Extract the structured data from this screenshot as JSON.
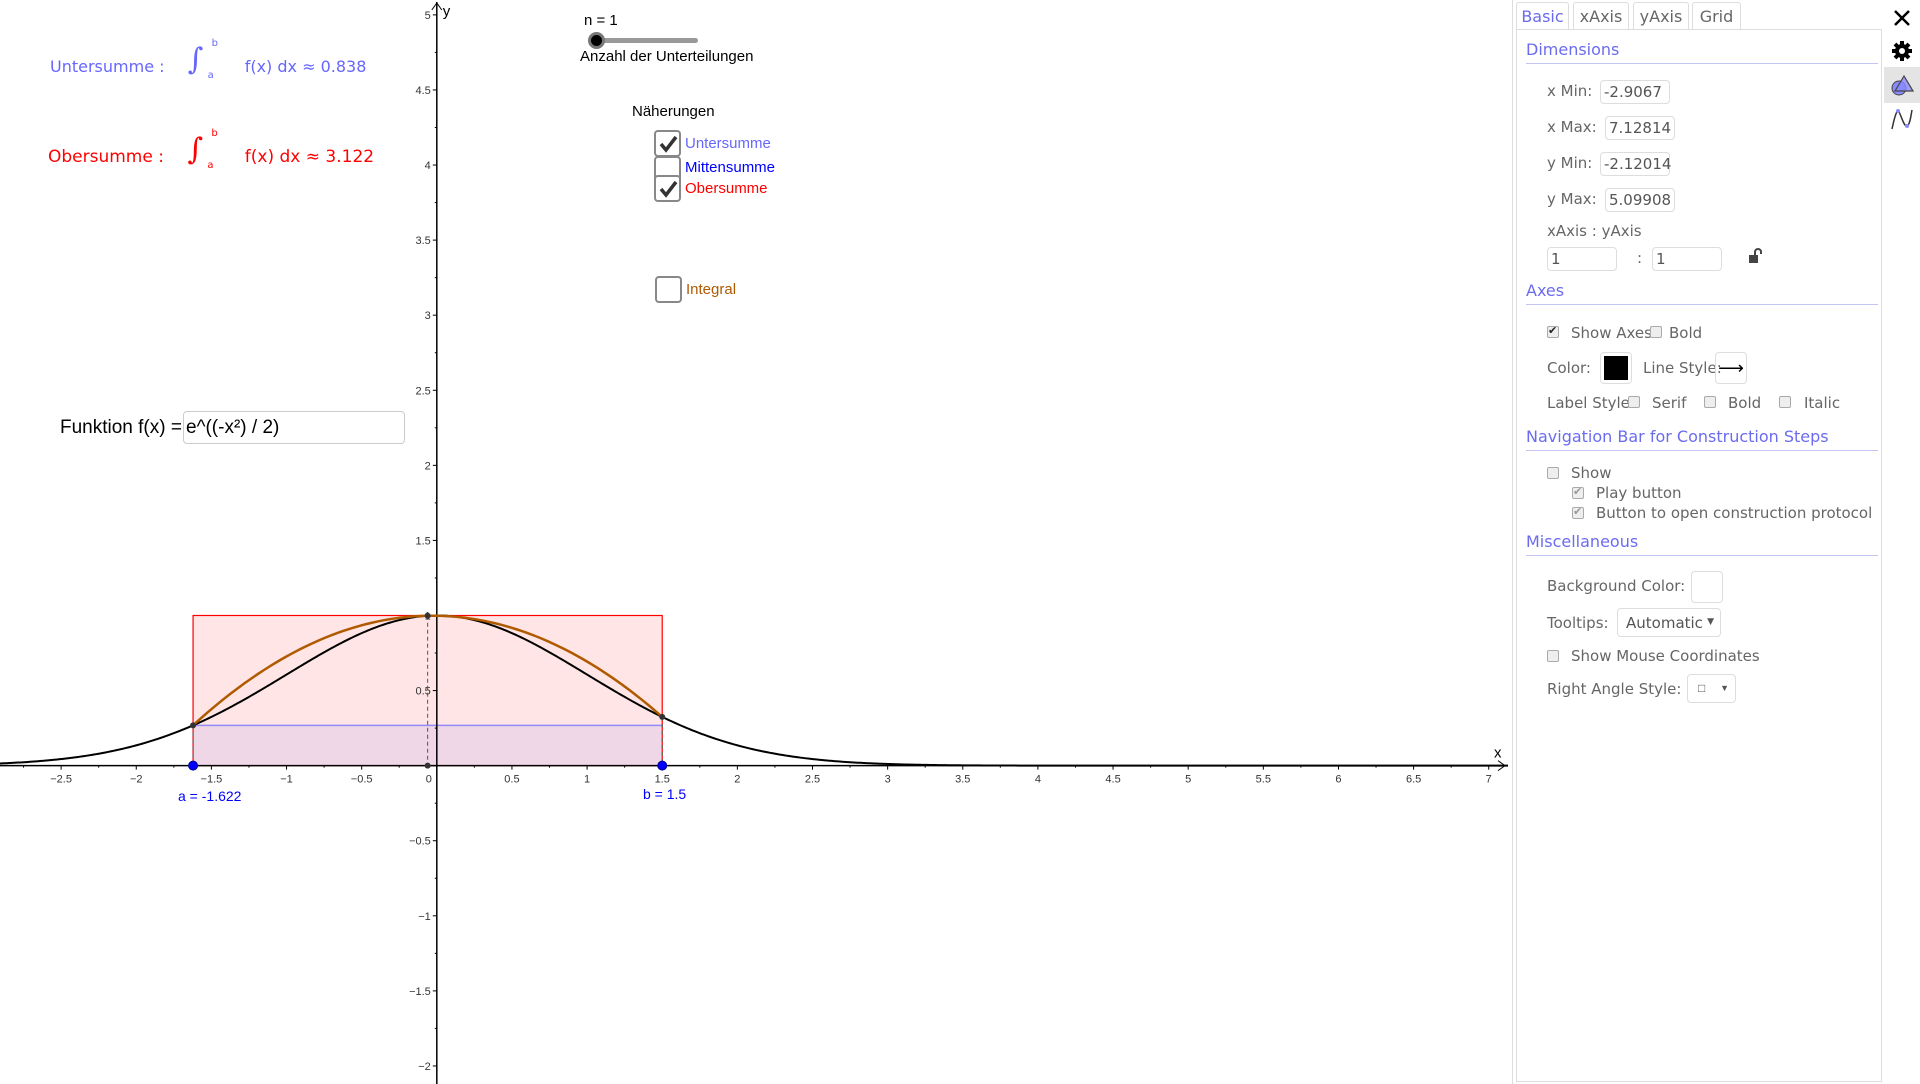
{
  "sums": {
    "unter_label": "Untersumme :",
    "unter_value": "≈ 0.838",
    "ober_label": "Obersumme :",
    "ober_value": "≈ 3.122",
    "integrand": "f(x) dx",
    "lower_limit": "a",
    "upper_limit": "b",
    "integral_sign": "∫"
  },
  "slider": {
    "label": "n = 1",
    "caption": "Anzahl der Unterteilungen",
    "value": 1
  },
  "approximations": {
    "title": "Näherungen",
    "items": [
      {
        "label": "Untersumme",
        "checked": true,
        "color": "#6666ff"
      },
      {
        "label": "Mittensumme",
        "checked": false,
        "color": "#0000ff"
      },
      {
        "label": "Obersumme",
        "checked": true,
        "color": "#ff0000"
      }
    ],
    "integral": {
      "label": "Integral",
      "checked": false,
      "color": "#b05a00"
    }
  },
  "function_input": {
    "label": "Funktion f(x) =",
    "value": "e^((-x²) / 2)"
  },
  "graph": {
    "a": -1.622,
    "b": 1.5,
    "a_label": "a = -1.622",
    "b_label": "b = 1.5",
    "x_axis_label": "x",
    "y_axis_label": "y",
    "xlim": [
      -2.9067,
      7.12814
    ],
    "ylim": [
      -2.12014,
      5.09908
    ],
    "unter_height": 0.268,
    "ober_height": 1.0,
    "colors": {
      "curve": "#000000",
      "parabola": "#b05a00",
      "unter": "#6666ff",
      "ober": "#ff0000",
      "points": "#0000ff"
    }
  },
  "panel": {
    "tabs": [
      "Basic",
      "xAxis",
      "yAxis",
      "Grid"
    ],
    "active_tab": "Basic",
    "dimensions": {
      "title": "Dimensions",
      "x_min_label": "x Min:",
      "x_min": "-2.9067",
      "x_max_label": "x Max:",
      "x_max": "7.12814",
      "y_min_label": "y Min:",
      "y_min": "-2.12014",
      "y_max_label": "y Max:",
      "y_max": "5.09908",
      "ratio_label": "xAxis : yAxis",
      "ratio_x": "1",
      "ratio_sep": ":",
      "ratio_y": "1"
    },
    "axes": {
      "title": "Axes",
      "show_axes": "Show Axes",
      "bold": "Bold",
      "color_label": "Color:",
      "color": "#000000",
      "line_style_label": "Line Style:",
      "line_style": "⟶",
      "label_style": "Label Style:",
      "serif": "Serif",
      "bold2": "Bold",
      "italic": "Italic"
    },
    "navigation": {
      "title": "Navigation Bar for Construction Steps",
      "show": "Show",
      "play": "Play button",
      "protocol": "Button to open construction protocol"
    },
    "misc": {
      "title": "Miscellaneous",
      "bg_label": "Background Color:",
      "tooltips_label": "Tooltips:",
      "tooltips_value": "Automatic",
      "mouse_coords": "Show Mouse Coordinates",
      "right_angle_label": "Right Angle Style:",
      "right_angle_value": "□"
    }
  },
  "side_icons": [
    "close-icon",
    "gear-icon",
    "graphics-icon",
    "algebra-curve-icon"
  ]
}
